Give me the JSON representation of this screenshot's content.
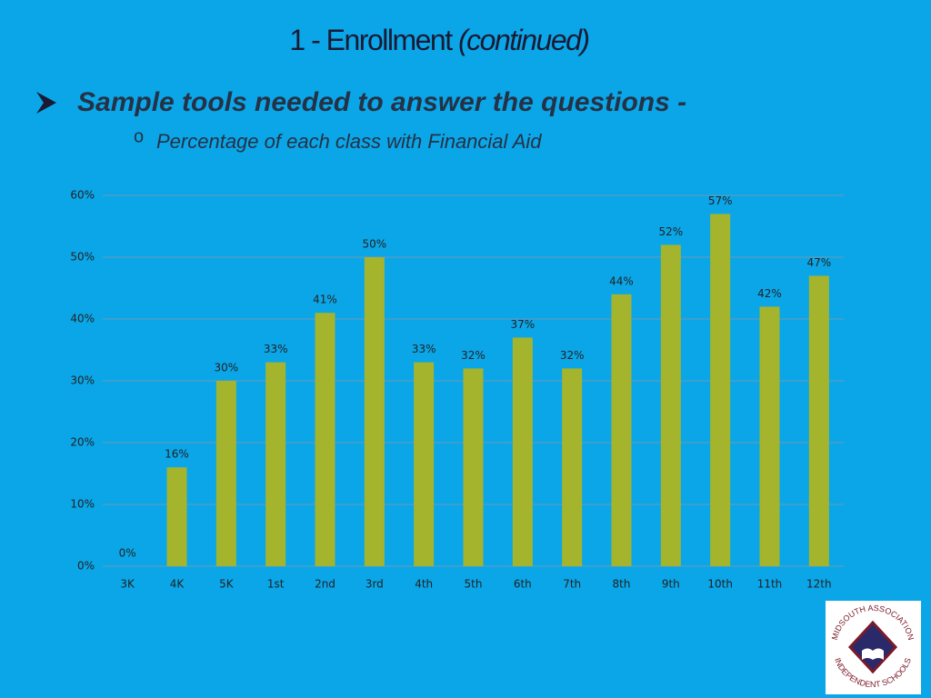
{
  "header": {
    "title": "1 - Enrollment",
    "title_italic": "(continued)"
  },
  "bullets": {
    "main": "Sample tools needed to answer the questions -",
    "sub_marker": "o",
    "sub": "Percentage of each class with Financial Aid"
  },
  "logo": {
    "top_text": "MIDSOUTH ASSOCIATION",
    "bottom_text": "INDEPENDENT SCHOOLS"
  },
  "chart_data": {
    "type": "bar",
    "categories": [
      "3K",
      "4K",
      "5K",
      "1st",
      "2nd",
      "3rd",
      "4th",
      "5th",
      "6th",
      "7th",
      "8th",
      "9th",
      "10th",
      "11th",
      "12th"
    ],
    "values": [
      0,
      16,
      30,
      33,
      41,
      50,
      33,
      32,
      37,
      32,
      44,
      52,
      57,
      42,
      47
    ],
    "value_labels": [
      "0%",
      "16%",
      "30%",
      "33%",
      "41%",
      "50%",
      "33%",
      "32%",
      "37%",
      "32%",
      "44%",
      "52%",
      "57%",
      "42%",
      "47%"
    ],
    "color": "#a4b42c",
    "ylim": [
      0,
      60
    ],
    "yticks": [
      {
        "value": 0,
        "label": "0%"
      },
      {
        "value": 10,
        "label": "10%"
      },
      {
        "value": 20,
        "label": "20%"
      },
      {
        "value": 30,
        "label": "30%"
      },
      {
        "value": 40,
        "label": "40%"
      },
      {
        "value": 50,
        "label": "50%"
      },
      {
        "value": 60,
        "label": "60%"
      }
    ],
    "grid": true
  }
}
